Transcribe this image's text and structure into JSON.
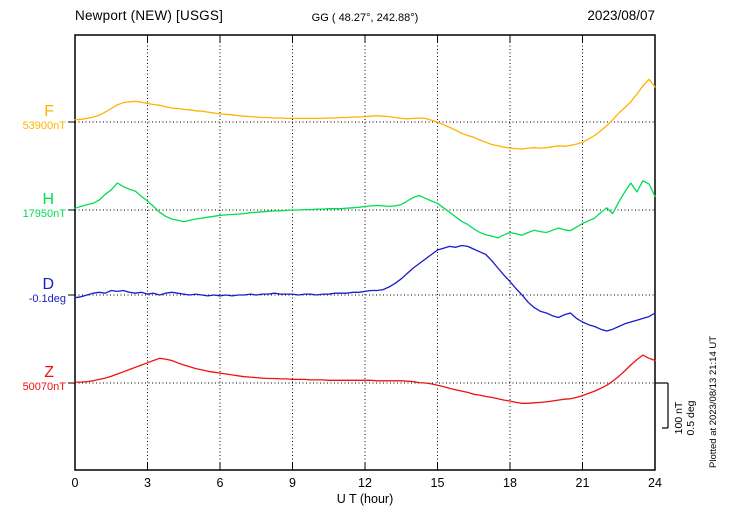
{
  "header": {
    "title": "Newport (NEW)  [USGS]",
    "coords": "GG ( 48.27°, 242.88°)",
    "date": "2023/08/07"
  },
  "footer": {
    "xlabel": "U T (hour)"
  },
  "side": {
    "scale_lines": [
      "100 nT",
      "0.5 deg"
    ],
    "plotted_at": "Plotted at 2023/08/13 21:14 UT"
  },
  "chart_data": {
    "type": "line",
    "title": "Newport (NEW) [USGS] magnetogram 2023/08/07",
    "xlabel": "U T (hour)",
    "x_range": [
      0,
      24
    ],
    "x_ticks": [
      0,
      3,
      6,
      9,
      12,
      15,
      18,
      21,
      24
    ],
    "grid": "dotted vertical lines every 3 h; dotted horizontal baseline per trace",
    "legend_position": "left margin (trace letter + baseline value)",
    "scale_bar": {
      "nT": 100,
      "deg": 0.5
    },
    "sample_step_hours": 0.25,
    "offsets_note": "values are deviations from each trace baseline, in nT (F,H,Z) or degrees (D)",
    "series": [
      {
        "name": "F",
        "baseline_label": "53900nT",
        "baseline_value": 53900,
        "unit": "nT",
        "color": "#FFB300",
        "offsets": [
          5,
          6,
          8,
          11,
          15,
          22,
          30,
          38,
          43,
          45,
          46,
          44,
          41,
          39,
          37,
          34,
          31,
          30,
          28,
          27,
          25,
          24,
          22,
          20,
          18,
          17,
          16,
          14,
          13,
          12,
          11,
          10,
          10,
          9,
          9,
          8,
          8,
          8,
          8,
          8,
          8,
          8,
          9,
          9,
          10,
          10,
          11,
          11,
          12,
          13,
          14,
          13,
          12,
          10,
          8,
          7,
          8,
          9,
          8,
          4,
          0,
          -6,
          -12,
          -18,
          -25,
          -30,
          -34,
          -40,
          -45,
          -50,
          -53,
          -56,
          -58,
          -59,
          -60,
          -58,
          -57,
          -58,
          -57,
          -55,
          -53,
          -54,
          -52,
          -49,
          -45,
          -38,
          -30,
          -20,
          -8,
          5,
          20,
          32,
          45,
          62,
          80,
          95,
          78
        ]
      },
      {
        "name": "H",
        "baseline_label": "17950nT",
        "baseline_value": 17950,
        "unit": "nT",
        "color": "#00DD55",
        "offsets": [
          4,
          8,
          12,
          15,
          22,
          35,
          45,
          60,
          52,
          46,
          42,
          30,
          20,
          8,
          -5,
          -14,
          -20,
          -23,
          -26,
          -23,
          -20,
          -18,
          -16,
          -14,
          -12,
          -11,
          -10,
          -9,
          -8,
          -6,
          -5,
          -4,
          -3,
          -2,
          -2,
          -1,
          0,
          0,
          1,
          1,
          2,
          2,
          3,
          3,
          3,
          4,
          5,
          6,
          8,
          9,
          10,
          9,
          8,
          9,
          12,
          20,
          28,
          32,
          26,
          20,
          15,
          5,
          -5,
          -15,
          -25,
          -32,
          -42,
          -50,
          -55,
          -58,
          -62,
          -55,
          -50,
          -53,
          -56,
          -50,
          -45,
          -48,
          -50,
          -45,
          -40,
          -44,
          -46,
          -38,
          -30,
          -24,
          -18,
          -6,
          5,
          -8,
          18,
          40,
          60,
          40,
          65,
          58,
          30
        ]
      },
      {
        "name": "D",
        "baseline_label": "-0.1deg",
        "baseline_value": -0.1,
        "unit": "deg",
        "color": "#1A1ACC",
        "offsets": [
          -0.03,
          -0.02,
          0,
          0.02,
          0.03,
          0.02,
          0.05,
          0.04,
          0.05,
          0.03,
          0.02,
          0.03,
          0.01,
          0.02,
          0,
          0.02,
          0.03,
          0.02,
          0.01,
          0,
          0.01,
          0,
          -0.01,
          0,
          -0.01,
          0,
          -0.01,
          0,
          0,
          0.01,
          0,
          0.01,
          0.01,
          0.02,
          0.01,
          0.01,
          0.01,
          0,
          0.01,
          0.01,
          0,
          0.01,
          0.01,
          0.02,
          0.02,
          0.02,
          0.03,
          0.03,
          0.04,
          0.05,
          0.05,
          0.06,
          0.09,
          0.13,
          0.18,
          0.24,
          0.3,
          0.35,
          0.4,
          0.45,
          0.5,
          0.52,
          0.54,
          0.53,
          0.55,
          0.54,
          0.51,
          0.48,
          0.45,
          0.38,
          0.3,
          0.22,
          0.15,
          0.07,
          0,
          -0.08,
          -0.14,
          -0.18,
          -0.2,
          -0.23,
          -0.25,
          -0.22,
          -0.2,
          -0.26,
          -0.3,
          -0.33,
          -0.35,
          -0.38,
          -0.4,
          -0.38,
          -0.35,
          -0.32,
          -0.3,
          -0.28,
          -0.26,
          -0.24,
          -0.2
        ]
      },
      {
        "name": "Z",
        "baseline_label": "50070nT",
        "baseline_value": 50070,
        "unit": "nT",
        "color": "#EE1111",
        "offsets": [
          2,
          2,
          3,
          5,
          8,
          11,
          15,
          20,
          25,
          30,
          35,
          40,
          45,
          50,
          55,
          53,
          50,
          45,
          40,
          36,
          32,
          29,
          26,
          24,
          22,
          20,
          18,
          16,
          14,
          13,
          12,
          11,
          10,
          10,
          9,
          9,
          8,
          8,
          8,
          7,
          7,
          7,
          6,
          6,
          6,
          6,
          6,
          6,
          6,
          6,
          5,
          5,
          5,
          5,
          5,
          4,
          3,
          1,
          0,
          -2,
          -5,
          -8,
          -12,
          -15,
          -18,
          -21,
          -25,
          -27,
          -30,
          -32,
          -35,
          -38,
          -40,
          -43,
          -45,
          -45,
          -44,
          -43,
          -42,
          -40,
          -38,
          -36,
          -35,
          -32,
          -28,
          -23,
          -18,
          -12,
          -5,
          4,
          15,
          27,
          40,
          52,
          62,
          55,
          50
        ]
      }
    ]
  }
}
